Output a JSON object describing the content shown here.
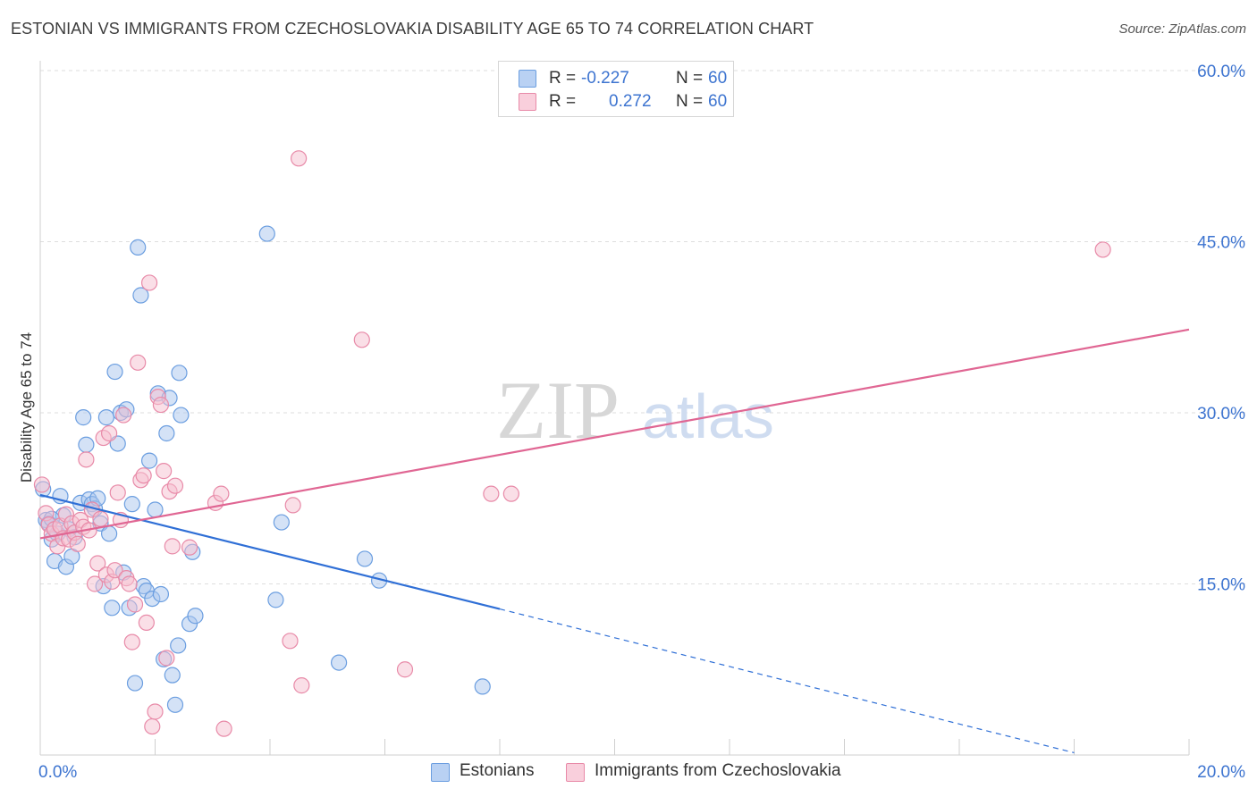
{
  "header": {
    "title": "ESTONIAN VS IMMIGRANTS FROM CZECHOSLOVAKIA DISABILITY AGE 65 TO 74 CORRELATION CHART",
    "source": "Source: ZipAtlas.com"
  },
  "watermark": {
    "zip": "ZIP",
    "atlas": "atlas"
  },
  "legend_top": {
    "rows": [
      {
        "r_label": "R =",
        "r_value": "-0.227",
        "n_label": "N =",
        "n_value": "60"
      },
      {
        "r_label": "R =",
        "r_value": "0.272",
        "n_label": "N =",
        "n_value": "60"
      }
    ]
  },
  "legend_bottom": {
    "series1": "Estonians",
    "series2": "Immigrants from Czechoslovakia"
  },
  "colors": {
    "blue_fill": "#a9c6ee",
    "blue_stroke": "#6b9ee0",
    "blue_line": "#2f6fd6",
    "pink_fill": "#f6bfd0",
    "pink_stroke": "#e88aa8",
    "pink_line": "#e06693",
    "axis_text": "#3d74d0",
    "grid": "#dedede"
  },
  "chart_data": {
    "type": "scatter",
    "title": "ESTONIAN VS IMMIGRANTS FROM CZECHOSLOVAKIA DISABILITY AGE 65 TO 74 CORRELATION CHART",
    "xlabel": "",
    "ylabel": "Disability Age 65 to 74",
    "xlim": [
      0,
      20
    ],
    "ylim": [
      0,
      60
    ],
    "x_ticks": [
      "0.0%",
      "20.0%"
    ],
    "y_ticks": [
      {
        "value": 15,
        "label": "15.0%"
      },
      {
        "value": 30,
        "label": "30.0%"
      },
      {
        "value": 45,
        "label": "45.0%"
      },
      {
        "value": 60,
        "label": "60.0%"
      }
    ],
    "series": [
      {
        "name": "Estonians",
        "r": -0.227,
        "n": 60,
        "trend": {
          "x0": 0,
          "y0": 22.8,
          "x1": 8.0,
          "y1": 12.8,
          "dash_x1": 18.0,
          "dash_y1": 0.2
        },
        "points": [
          [
            0.05,
            23.3
          ],
          [
            0.1,
            20.6
          ],
          [
            0.15,
            20.3
          ],
          [
            0.2,
            18.9
          ],
          [
            0.25,
            17.0
          ],
          [
            0.3,
            19.4
          ],
          [
            0.35,
            22.7
          ],
          [
            0.4,
            21.0
          ],
          [
            0.45,
            16.5
          ],
          [
            0.5,
            19.8
          ],
          [
            0.55,
            17.4
          ],
          [
            0.6,
            19.1
          ],
          [
            0.7,
            22.1
          ],
          [
            0.75,
            29.6
          ],
          [
            0.8,
            27.2
          ],
          [
            0.85,
            22.4
          ],
          [
            0.9,
            22.0
          ],
          [
            0.95,
            21.6
          ],
          [
            1.0,
            22.5
          ],
          [
            1.05,
            20.3
          ],
          [
            1.1,
            14.8
          ],
          [
            1.15,
            29.6
          ],
          [
            1.2,
            19.4
          ],
          [
            1.25,
            12.9
          ],
          [
            1.3,
            33.6
          ],
          [
            1.35,
            27.3
          ],
          [
            1.4,
            30.0
          ],
          [
            1.45,
            16.0
          ],
          [
            1.5,
            30.3
          ],
          [
            1.55,
            12.9
          ],
          [
            1.6,
            22.0
          ],
          [
            1.65,
            6.3
          ],
          [
            1.7,
            44.5
          ],
          [
            1.75,
            40.3
          ],
          [
            1.8,
            14.8
          ],
          [
            1.85,
            14.4
          ],
          [
            1.9,
            25.8
          ],
          [
            1.95,
            13.7
          ],
          [
            2.0,
            21.5
          ],
          [
            2.05,
            31.7
          ],
          [
            2.1,
            14.1
          ],
          [
            2.15,
            8.4
          ],
          [
            2.2,
            28.2
          ],
          [
            2.25,
            31.3
          ],
          [
            2.3,
            7.0
          ],
          [
            2.35,
            4.4
          ],
          [
            2.4,
            9.6
          ],
          [
            2.42,
            33.5
          ],
          [
            2.45,
            29.8
          ],
          [
            2.6,
            11.5
          ],
          [
            2.65,
            17.8
          ],
          [
            2.7,
            12.2
          ],
          [
            3.95,
            45.7
          ],
          [
            4.1,
            13.6
          ],
          [
            4.2,
            20.4
          ],
          [
            5.2,
            8.1
          ],
          [
            5.65,
            17.2
          ],
          [
            5.9,
            15.3
          ],
          [
            7.7,
            6.0
          ],
          [
            0.2,
            20.7
          ]
        ]
      },
      {
        "name": "Immigrants from Czechoslovakia",
        "r": 0.272,
        "n": 60,
        "trend": {
          "x0": 0,
          "y0": 19.0,
          "x1": 20.0,
          "y1": 37.3
        },
        "points": [
          [
            0.03,
            23.7
          ],
          [
            0.1,
            21.2
          ],
          [
            0.15,
            20.2
          ],
          [
            0.2,
            19.4
          ],
          [
            0.25,
            19.8
          ],
          [
            0.3,
            18.3
          ],
          [
            0.35,
            20.1
          ],
          [
            0.4,
            19.0
          ],
          [
            0.45,
            21.1
          ],
          [
            0.5,
            18.9
          ],
          [
            0.55,
            20.3
          ],
          [
            0.6,
            19.5
          ],
          [
            0.65,
            18.5
          ],
          [
            0.7,
            20.6
          ],
          [
            0.75,
            20.0
          ],
          [
            0.8,
            25.9
          ],
          [
            0.85,
            19.7
          ],
          [
            0.9,
            21.5
          ],
          [
            0.95,
            15.0
          ],
          [
            1.0,
            16.8
          ],
          [
            1.05,
            20.7
          ],
          [
            1.1,
            27.8
          ],
          [
            1.15,
            15.8
          ],
          [
            1.2,
            28.2
          ],
          [
            1.25,
            15.2
          ],
          [
            1.3,
            16.2
          ],
          [
            1.35,
            23.0
          ],
          [
            1.4,
            20.6
          ],
          [
            1.45,
            29.8
          ],
          [
            1.5,
            15.5
          ],
          [
            1.55,
            15.0
          ],
          [
            1.6,
            9.9
          ],
          [
            1.65,
            13.2
          ],
          [
            1.7,
            34.4
          ],
          [
            1.75,
            24.1
          ],
          [
            1.8,
            24.5
          ],
          [
            1.85,
            11.6
          ],
          [
            1.9,
            41.4
          ],
          [
            1.95,
            2.5
          ],
          [
            2.0,
            3.8
          ],
          [
            2.05,
            31.4
          ],
          [
            2.1,
            30.7
          ],
          [
            2.15,
            24.9
          ],
          [
            2.2,
            8.5
          ],
          [
            2.25,
            23.1
          ],
          [
            2.3,
            18.3
          ],
          [
            2.35,
            23.6
          ],
          [
            2.6,
            18.2
          ],
          [
            3.05,
            22.1
          ],
          [
            3.15,
            22.9
          ],
          [
            3.2,
            2.3
          ],
          [
            4.35,
            10.0
          ],
          [
            4.4,
            21.9
          ],
          [
            4.5,
            52.3
          ],
          [
            4.55,
            6.1
          ],
          [
            5.6,
            36.4
          ],
          [
            6.35,
            7.5
          ],
          [
            7.85,
            22.9
          ],
          [
            8.2,
            22.9
          ],
          [
            18.5,
            44.3
          ]
        ]
      }
    ]
  }
}
